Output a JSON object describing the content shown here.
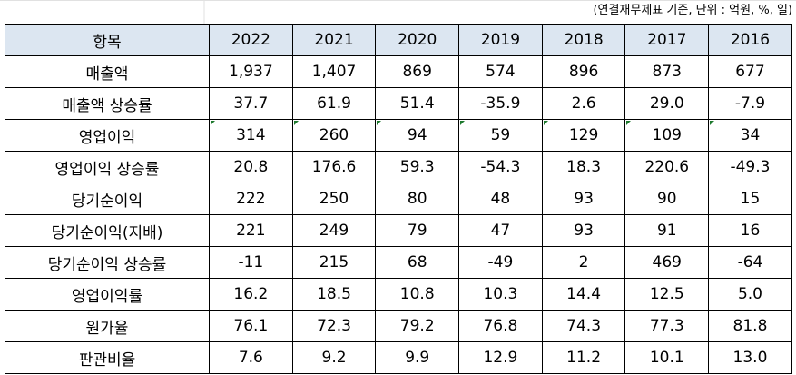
{
  "unit_note": "(연결재무제표 기준, 단위 : 억원, %, 일)",
  "table": {
    "header": [
      "항목",
      "2022",
      "2021",
      "2020",
      "2019",
      "2018",
      "2017",
      "2016"
    ],
    "rows": [
      {
        "label": "매출액",
        "values": [
          "1,937",
          "1,407",
          "869",
          "574",
          "896",
          "873",
          "677"
        ]
      },
      {
        "label": "매출액 상승률",
        "values": [
          "37.7",
          "61.9",
          "51.4",
          "-35.9",
          "2.6",
          "29.0",
          "-7.9"
        ]
      },
      {
        "label": "영업이익",
        "values": [
          "314",
          "260",
          "94",
          "59",
          "129",
          "109",
          "34"
        ]
      },
      {
        "label": "영업이익 상승률",
        "values": [
          "20.8",
          "176.6",
          "59.3",
          "-54.3",
          "18.3",
          "220.6",
          "-49.3"
        ]
      },
      {
        "label": "당기순이익",
        "values": [
          "222",
          "250",
          "80",
          "48",
          "93",
          "90",
          "15"
        ]
      },
      {
        "label": "당기순이익(지배)",
        "values": [
          "221",
          "249",
          "79",
          "47",
          "93",
          "91",
          "16"
        ]
      },
      {
        "label": "당기순이익 상승률",
        "values": [
          "-11",
          "215",
          "68",
          "-49",
          "2",
          "469",
          "-64"
        ]
      },
      {
        "label": "영업이익률",
        "values": [
          "16.2",
          "18.5",
          "10.8",
          "10.3",
          "14.4",
          "12.5",
          "5.0"
        ]
      },
      {
        "label": "원가율",
        "values": [
          "76.1",
          "72.3",
          "79.2",
          "76.8",
          "74.3",
          "77.3",
          "81.8"
        ]
      },
      {
        "label": "판관비율",
        "values": [
          "7.6",
          "9.2",
          "9.9",
          "12.9",
          "11.2",
          "10.1",
          "13.0"
        ]
      }
    ]
  },
  "colors": {
    "header_fill": "#dce6f1",
    "gridline": "#e1e1e1",
    "cell_marker": "#1e7a2e"
  }
}
